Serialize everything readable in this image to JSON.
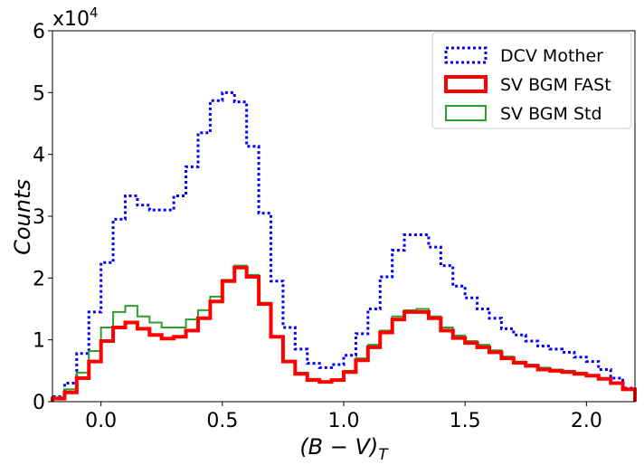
{
  "chart_data": {
    "type": "line",
    "step": true,
    "multiplier_label": "x10",
    "multiplier_exponent": "4",
    "xlabel": "(B − V)",
    "xlabel_subscript": "T",
    "ylabel": "Counts",
    "xlim": [
      -0.2,
      2.2
    ],
    "ylim": [
      0,
      6
    ],
    "xticks": [
      0.0,
      0.5,
      1.0,
      1.5,
      2.0
    ],
    "xtick_labels": [
      "0.0",
      "0.5",
      "1.0",
      "1.5",
      "2.0"
    ],
    "yticks": [
      0,
      1,
      2,
      3,
      4,
      5,
      6
    ],
    "ytick_labels": [
      "0",
      "1",
      "2",
      "3",
      "4",
      "5",
      "6"
    ],
    "bin_width": 0.05,
    "x": [
      -0.2,
      -0.15,
      -0.1,
      -0.05,
      0.0,
      0.05,
      0.1,
      0.15,
      0.2,
      0.25,
      0.3,
      0.35,
      0.4,
      0.45,
      0.5,
      0.55,
      0.6,
      0.65,
      0.7,
      0.75,
      0.8,
      0.85,
      0.9,
      0.95,
      1.0,
      1.05,
      1.1,
      1.15,
      1.2,
      1.25,
      1.3,
      1.35,
      1.4,
      1.45,
      1.5,
      1.55,
      1.6,
      1.65,
      1.7,
      1.75,
      1.8,
      1.85,
      1.9,
      1.95,
      2.0,
      2.05,
      2.1,
      2.15
    ],
    "legend_position": "upper-right",
    "series": [
      {
        "name": "DCV Mother",
        "color": "#0000ff",
        "style": "dotted",
        "values": [
          0.08,
          0.3,
          0.78,
          1.45,
          2.25,
          2.95,
          3.33,
          3.18,
          3.1,
          3.1,
          3.33,
          3.8,
          4.35,
          4.87,
          5.0,
          4.85,
          4.13,
          3.05,
          1.95,
          1.2,
          0.85,
          0.62,
          0.55,
          0.6,
          0.75,
          1.1,
          1.5,
          2.02,
          2.45,
          2.7,
          2.7,
          2.5,
          2.2,
          1.87,
          1.68,
          1.5,
          1.35,
          1.18,
          1.08,
          0.98,
          0.9,
          0.85,
          0.8,
          0.72,
          0.65,
          0.52,
          0.38,
          0.22
        ]
      },
      {
        "name": "SV BGM FASt",
        "color": "#ff0000",
        "style": "solid-thick",
        "values": [
          0.05,
          0.15,
          0.38,
          0.65,
          0.98,
          1.2,
          1.28,
          1.18,
          1.08,
          1.02,
          1.05,
          1.15,
          1.35,
          1.62,
          1.95,
          2.17,
          2.02,
          1.58,
          1.05,
          0.65,
          0.45,
          0.35,
          0.32,
          0.35,
          0.48,
          0.67,
          0.88,
          1.12,
          1.33,
          1.45,
          1.45,
          1.35,
          1.15,
          1.03,
          0.95,
          0.88,
          0.8,
          0.7,
          0.63,
          0.58,
          0.52,
          0.5,
          0.48,
          0.45,
          0.42,
          0.37,
          0.3,
          0.2
        ]
      },
      {
        "name": "SV BGM Std",
        "color": "#2ca02c",
        "style": "solid",
        "values": [
          0.07,
          0.2,
          0.47,
          0.82,
          1.2,
          1.45,
          1.55,
          1.38,
          1.28,
          1.2,
          1.2,
          1.33,
          1.48,
          1.7,
          1.97,
          2.2,
          2.05,
          1.6,
          1.05,
          0.65,
          0.47,
          0.37,
          0.33,
          0.36,
          0.5,
          0.7,
          0.92,
          1.15,
          1.38,
          1.48,
          1.5,
          1.38,
          1.2,
          1.07,
          0.98,
          0.92,
          0.83,
          0.73,
          0.65,
          0.6,
          0.55,
          0.52,
          0.5,
          0.47,
          0.43,
          0.38,
          0.3,
          0.2
        ]
      }
    ]
  }
}
